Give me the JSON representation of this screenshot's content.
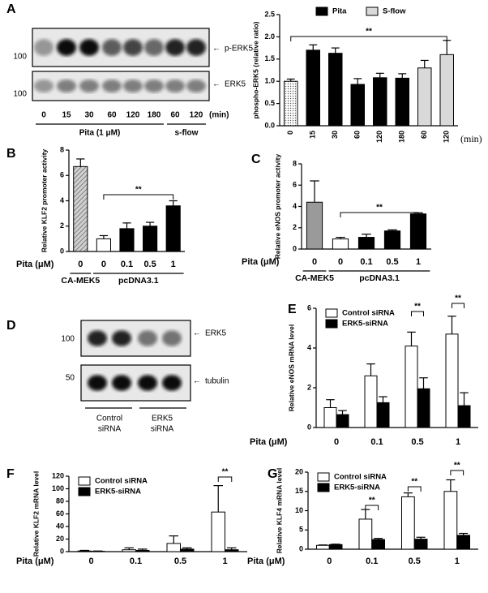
{
  "panel_labels": [
    "A",
    "B",
    "C",
    "D",
    "E",
    "F",
    "G"
  ],
  "blots": {
    "a": {
      "markers": [
        "100",
        "100"
      ],
      "bands": [
        "p-ERK5",
        "ERK5"
      ],
      "lanes": [
        "0",
        "15",
        "30",
        "60",
        "120",
        "180",
        "60",
        "120"
      ],
      "lane_unit": "(min)",
      "groups": [
        "Pita (1 μM)",
        "s-flow"
      ]
    },
    "d": {
      "markers": [
        "100",
        "50"
      ],
      "bands": [
        "ERK5",
        "tubulin"
      ],
      "groups": [
        [
          "Control",
          "siRNA"
        ],
        [
          "ERK5",
          "siRNA"
        ]
      ]
    }
  },
  "chart_data": [
    {
      "type": "bar",
      "ylabel": "phospho-ERK5 (relative ratio)",
      "xlabel": "(min)",
      "categories": [
        "0",
        "15",
        "30",
        "60",
        "120",
        "180",
        "60",
        "120"
      ],
      "values": [
        1.0,
        1.7,
        1.63,
        0.93,
        1.08,
        1.07,
        1.3,
        1.6
      ],
      "errors": [
        0.05,
        0.12,
        0.12,
        0.13,
        0.1,
        0.1,
        0.17,
        0.32
      ],
      "colors": [
        "dots",
        "#000000",
        "#000000",
        "#000000",
        "#000000",
        "#000000",
        "#d9d9d9",
        "#d9d9d9"
      ],
      "legend": [
        {
          "name": "Pita",
          "color": "#000000"
        },
        {
          "name": "S-flow",
          "color": "#d9d9d9"
        }
      ],
      "annotations": [
        "**"
      ],
      "ylim": [
        0,
        2.5
      ],
      "yticks": [
        {
          "value": 0,
          "label": "0.0"
        },
        {
          "value": 0.5,
          "label": "0.5"
        },
        {
          "value": 1,
          "label": "1.0"
        },
        {
          "value": 1.5,
          "label": "1.5"
        },
        {
          "value": 2,
          "label": "2.0"
        },
        {
          "value": 2.5,
          "label": "2.5"
        }
      ]
    },
    {
      "type": "bar",
      "ylabel": "Relative KLF2 promoter activity",
      "xlabel": "Pita (μM)",
      "categories": [
        "0",
        "0",
        "0.1",
        "0.5",
        "1"
      ],
      "groups": [
        "CA-MEK5",
        "pcDNA3.1"
      ],
      "values": [
        6.7,
        1.0,
        1.8,
        2.0,
        3.6
      ],
      "errors": [
        0.6,
        0.25,
        0.45,
        0.3,
        0.4
      ],
      "colors": [
        "hatch",
        "#ffffff",
        "#000000",
        "#000000",
        "#000000"
      ],
      "annotations": [
        "**"
      ],
      "ylim": [
        0,
        8
      ],
      "yticks": [
        0,
        2,
        4,
        6,
        8
      ]
    },
    {
      "type": "bar",
      "ylabel": "Relative eNOS promoter activity",
      "xlabel": "Pita (μM)",
      "categories": [
        "0",
        "0",
        "0.1",
        "0.5",
        "1"
      ],
      "groups": [
        "CA-MEK5",
        "pcDNA3.1"
      ],
      "values": [
        4.4,
        0.95,
        1.1,
        1.7,
        3.3
      ],
      "errors": [
        2.0,
        0.15,
        0.3,
        0.1,
        0.1
      ],
      "colors": [
        "#9a9a9a",
        "#ffffff",
        "#000000",
        "#000000",
        "#000000"
      ],
      "annotations": [
        "**"
      ],
      "ylim": [
        0,
        8
      ],
      "yticks": [
        0,
        2,
        4,
        6,
        8
      ]
    },
    {
      "type": "grouped-bar",
      "ylabel": "Relative eNOS mRNA level",
      "xlabel": "Pita (μM)",
      "categories": [
        "0",
        "0.1",
        "0.5",
        "1"
      ],
      "series": [
        {
          "name": "Control siRNA",
          "color": "#ffffff",
          "values": [
            1.0,
            2.6,
            4.1,
            4.7
          ],
          "errors": [
            0.4,
            0.6,
            0.7,
            0.9
          ]
        },
        {
          "name": "ERK5-siRNA",
          "color": "#000000",
          "values": [
            0.65,
            1.25,
            1.95,
            1.1
          ],
          "errors": [
            0.2,
            0.3,
            0.55,
            0.65
          ]
        }
      ],
      "annotations": [
        "**",
        "**"
      ],
      "ylim": [
        0,
        6
      ],
      "yticks": [
        0,
        2,
        4,
        6
      ]
    },
    {
      "type": "grouped-bar",
      "ylabel": "Relative KLF2 mRNA level",
      "xlabel": "Pita (μM)",
      "categories": [
        "0",
        "0.1",
        "0.5",
        "1"
      ],
      "series": [
        {
          "name": "Control siRNA",
          "color": "#ffffff",
          "values": [
            1,
            3,
            13,
            63
          ],
          "errors": [
            1,
            3,
            12,
            42
          ]
        },
        {
          "name": "ERK5-siRNA",
          "color": "#000000",
          "values": [
            0.5,
            2,
            4,
            3
          ],
          "errors": [
            0.5,
            2,
            2,
            3
          ]
        }
      ],
      "annotations": [
        "**"
      ],
      "ylim": [
        0,
        120
      ],
      "yticks": [
        0,
        20,
        40,
        60,
        80,
        100,
        120
      ]
    },
    {
      "type": "grouped-bar",
      "ylabel": "Relative KLF4 mRNA level",
      "xlabel": "Pita (μM)",
      "categories": [
        "0",
        "0.1",
        "0.5",
        "1"
      ],
      "series": [
        {
          "name": "Control siRNA",
          "color": "#ffffff",
          "values": [
            1,
            7.8,
            13.6,
            15
          ],
          "errors": [
            0.1,
            2.5,
            1,
            3
          ]
        },
        {
          "name": "ERK5-siRNA",
          "color": "#000000",
          "values": [
            1.2,
            2.5,
            2.6,
            3.6
          ],
          "errors": [
            0.1,
            0.3,
            0.5,
            0.5
          ]
        }
      ],
      "annotations": [
        "**",
        "**",
        "**"
      ],
      "ylim": [
        0,
        20
      ],
      "yticks": [
        0,
        5,
        10,
        15,
        20
      ]
    }
  ]
}
